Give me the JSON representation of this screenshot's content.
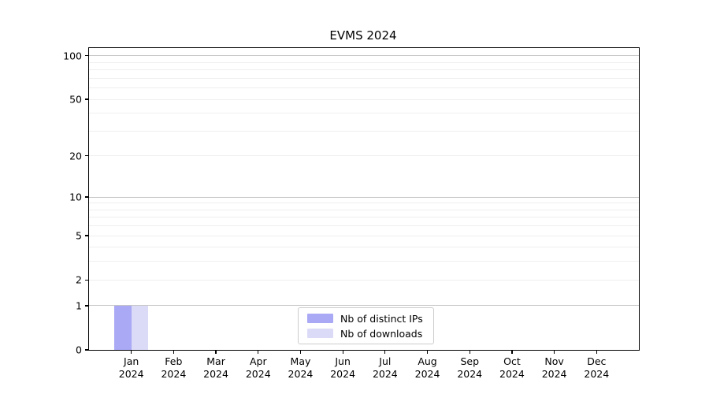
{
  "chart_data": {
    "type": "bar",
    "title": "EVMS 2024",
    "xlabel": "",
    "ylabel": "",
    "grid": true,
    "categories": [
      "Jan 2024",
      "Feb 2024",
      "Mar 2024",
      "Apr 2024",
      "May 2024",
      "Jun 2024",
      "Jul 2024",
      "Aug 2024",
      "Sep 2024",
      "Oct 2024",
      "Nov 2024",
      "Dec 2024"
    ],
    "series": [
      {
        "name": "Nb of distinct IPs",
        "color": "#a9a9f5",
        "values": [
          1,
          0,
          0,
          0,
          0,
          0,
          0,
          0,
          0,
          0,
          0,
          0
        ]
      },
      {
        "name": "Nb of downloads",
        "color": "#dbdbf8",
        "values": [
          1,
          0,
          0,
          0,
          0,
          0,
          0,
          0,
          0,
          0,
          0,
          0
        ]
      }
    ],
    "y_axis": {
      "scale": "log1p",
      "ylim": [
        0,
        113
      ],
      "tick_values": [
        0,
        1,
        2,
        5,
        10,
        20,
        50,
        100
      ],
      "tick_labels": [
        "0",
        "1",
        "2",
        "5",
        "10",
        "20",
        "50",
        "100"
      ],
      "major_gridlines": [
        1,
        10,
        100
      ],
      "minor_gridlines": [
        2,
        3,
        4,
        5,
        6,
        7,
        8,
        9,
        20,
        30,
        40,
        50,
        60,
        70,
        80,
        90
      ]
    },
    "legend": {
      "position": "lower center",
      "entries": [
        "Nb of distinct IPs",
        "Nb of downloads"
      ]
    }
  },
  "colors": {
    "axis": "#000000",
    "major_grid": "#c6c6c6",
    "minor_grid": "#efefef",
    "legend_border": "#cccccc",
    "background": "#ffffff"
  }
}
